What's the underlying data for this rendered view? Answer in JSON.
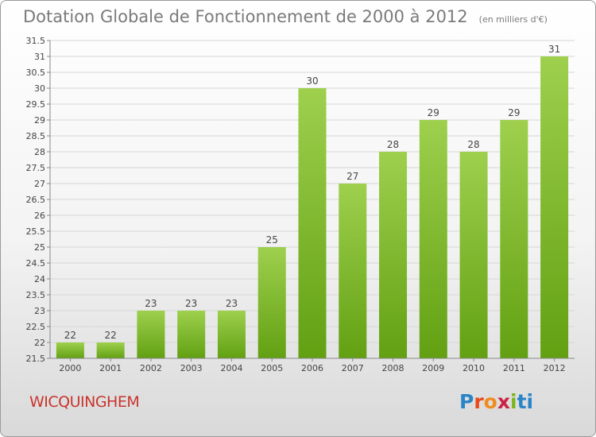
{
  "title": "Dotation Globale de Fonctionnement de 2000 à 2012",
  "subtitle": "(en milliers d'€)",
  "location": "WICQUINGHEM",
  "brand": {
    "logo_text": "Proxiti",
    "letters": [
      "P",
      "r",
      "o",
      "x",
      "i",
      "ti"
    ]
  },
  "colors": {
    "bar_light": "#9ed04e",
    "bar_dark": "#62a012",
    "title": "#7a7a7a",
    "location": "#c8342d"
  },
  "chart_data": {
    "type": "bar",
    "categories": [
      "2000",
      "2001",
      "2002",
      "2003",
      "2004",
      "2005",
      "2006",
      "2007",
      "2008",
      "2009",
      "2010",
      "2011",
      "2012"
    ],
    "values": [
      22,
      22,
      23,
      23,
      23,
      25,
      30,
      27,
      28,
      29,
      28,
      29,
      31
    ],
    "ylim": [
      21.5,
      31.5
    ],
    "yticks": [
      "21.5",
      "22",
      "22.5",
      "23",
      "23.5",
      "24",
      "24.5",
      "25",
      "25.5",
      "26",
      "26.5",
      "27",
      "27.5",
      "28",
      "28.5",
      "29",
      "29.5",
      "30",
      "30.5",
      "31",
      "31.5"
    ],
    "grid": true,
    "title": "Dotation Globale de Fonctionnement de 2000 à 2012",
    "xlabel": "",
    "ylabel": ""
  }
}
